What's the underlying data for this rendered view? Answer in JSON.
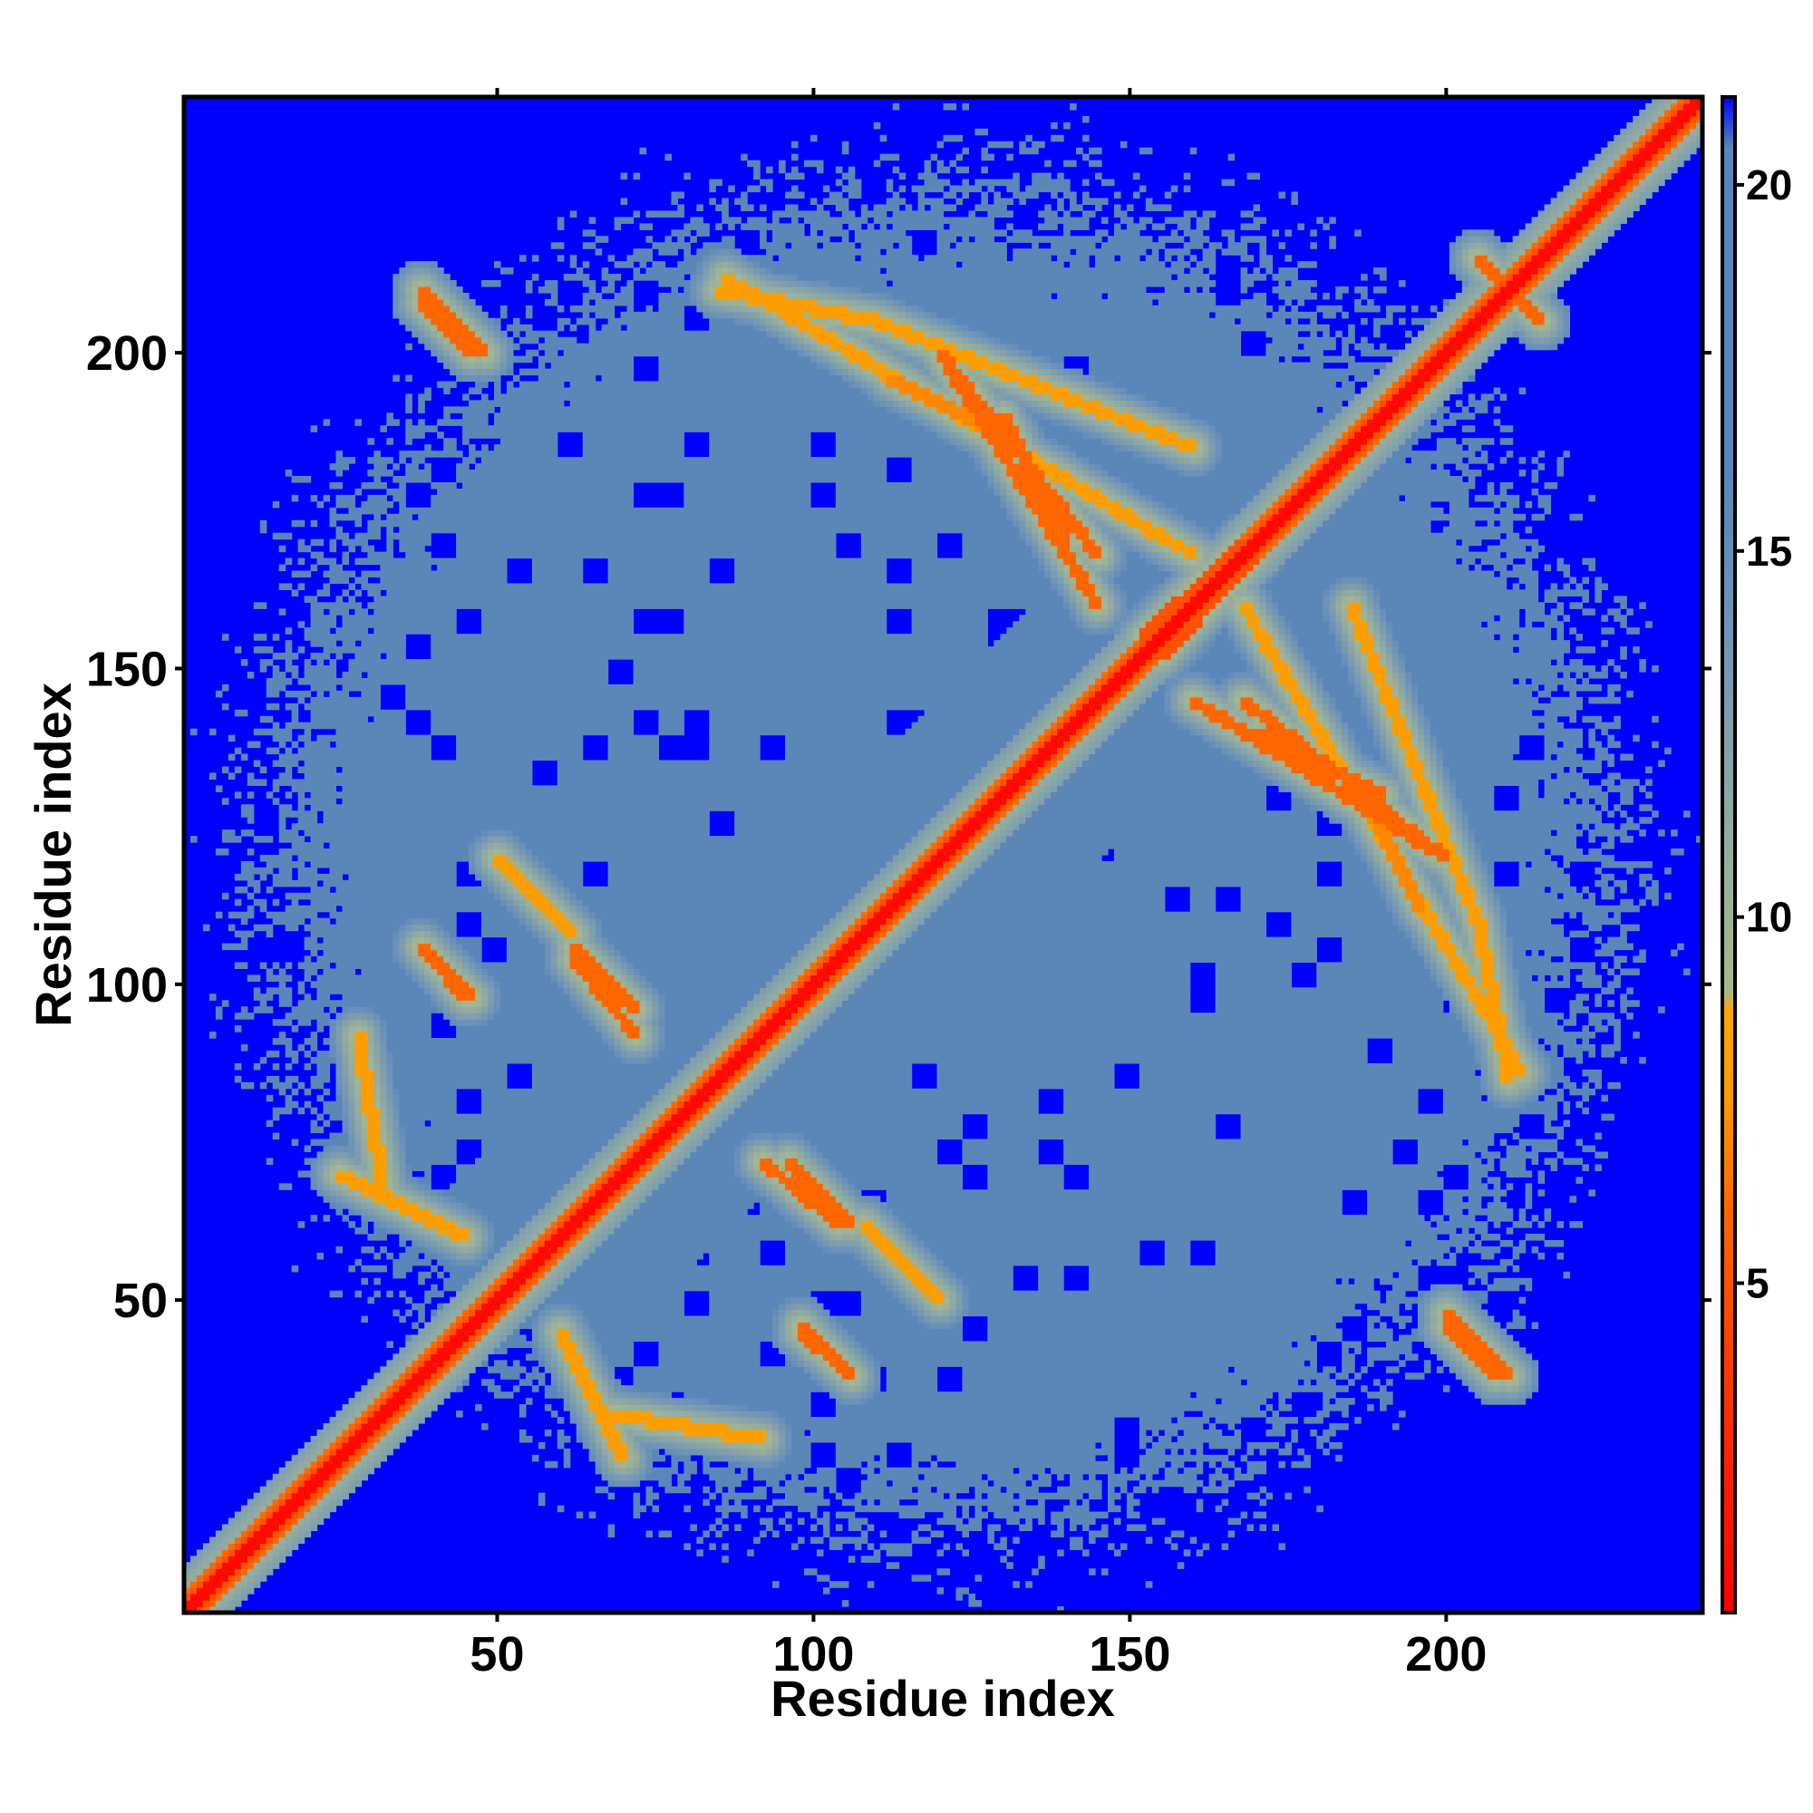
{
  "chart_data": {
    "type": "heatmap",
    "title": "",
    "xlabel": "Residue index",
    "ylabel": "Residue index",
    "n_residues": 240,
    "xlim": [
      1,
      240
    ],
    "ylim": [
      1,
      240
    ],
    "x_ticks": [
      50,
      100,
      150,
      200
    ],
    "y_ticks": [
      50,
      100,
      150,
      200
    ],
    "x_tick_labels": [
      "50",
      "100",
      "150",
      "200"
    ],
    "y_tick_labels": [
      "50",
      "100",
      "150",
      "200"
    ],
    "colorbar": {
      "range": [
        0.5,
        21.2
      ],
      "ticks": [
        5,
        10,
        15,
        20
      ],
      "tick_labels": [
        "5",
        "10",
        "15",
        "20"
      ],
      "stops": [
        {
          "value": 0.5,
          "color": "#ff0000"
        },
        {
          "value": 3.5,
          "color": "#ff3300"
        },
        {
          "value": 6.0,
          "color": "#ff6600"
        },
        {
          "value": 7.5,
          "color": "#ff9900"
        },
        {
          "value": 8.7,
          "color": "#ffa500"
        },
        {
          "value": 9.0,
          "color": "#a8b88c"
        },
        {
          "value": 11.0,
          "color": "#94aca0"
        },
        {
          "value": 14.0,
          "color": "#6f94b8"
        },
        {
          "value": 16.0,
          "color": "#5a87b8"
        },
        {
          "value": 20.5,
          "color": "#5a87b8"
        },
        {
          "value": 21.2,
          "color": "#0000ff"
        }
      ]
    },
    "description_values": {
      "diagonal_distance": 1.0,
      "background_far_distance": 21.2,
      "mid_distance": 17.5
    },
    "contact_features": [
      {
        "kind": "band",
        "x1": 38,
        "y1": 208,
        "x2": 46,
        "y2": 200,
        "d": 6
      },
      {
        "kind": "band",
        "x1": 86,
        "y1": 212,
        "x2": 160,
        "y2": 168,
        "d": 8
      },
      {
        "kind": "band",
        "x1": 120,
        "y1": 200,
        "x2": 145,
        "y2": 168,
        "d": 6
      },
      {
        "kind": "band",
        "x1": 112,
        "y1": 196,
        "x2": 128,
        "y2": 188,
        "d": 7
      },
      {
        "kind": "band",
        "x1": 160,
        "y1": 145,
        "x2": 200,
        "y2": 120,
        "d": 6
      },
      {
        "kind": "band",
        "x1": 170,
        "y1": 140,
        "x2": 190,
        "y2": 130,
        "d": 6
      },
      {
        "kind": "band",
        "x1": 185,
        "y1": 160,
        "x2": 205,
        "y2": 110,
        "d": 8
      },
      {
        "kind": "band",
        "x1": 205,
        "y1": 110,
        "x2": 210,
        "y2": 85,
        "d": 8
      },
      {
        "kind": "band",
        "x1": 200,
        "y1": 48,
        "x2": 210,
        "y2": 38,
        "d": 6
      },
      {
        "kind": "band",
        "x1": 38,
        "y1": 106,
        "x2": 46,
        "y2": 98,
        "d": 6
      },
      {
        "kind": "band",
        "x1": 62,
        "y1": 106,
        "x2": 72,
        "y2": 96,
        "d": 6
      },
      {
        "kind": "band",
        "x1": 25,
        "y1": 70,
        "x2": 45,
        "y2": 60,
        "d": 8
      },
      {
        "kind": "band",
        "x1": 92,
        "y1": 72,
        "x2": 104,
        "y2": 62,
        "d": 6
      },
      {
        "kind": "band",
        "x1": 98,
        "y1": 45,
        "x2": 106,
        "y2": 38,
        "d": 6
      },
      {
        "kind": "band",
        "x1": 68,
        "y1": 32,
        "x2": 92,
        "y2": 28,
        "d": 8
      },
      {
        "kind": "band",
        "x1": 108,
        "y1": 62,
        "x2": 120,
        "y2": 50,
        "d": 8
      },
      {
        "kind": "band",
        "x1": 152,
        "y1": 155,
        "x2": 168,
        "y2": 170,
        "d": 5
      },
      {
        "kind": "band",
        "x1": 205,
        "y1": 215,
        "x2": 215,
        "y2": 205,
        "d": 6
      }
    ]
  }
}
